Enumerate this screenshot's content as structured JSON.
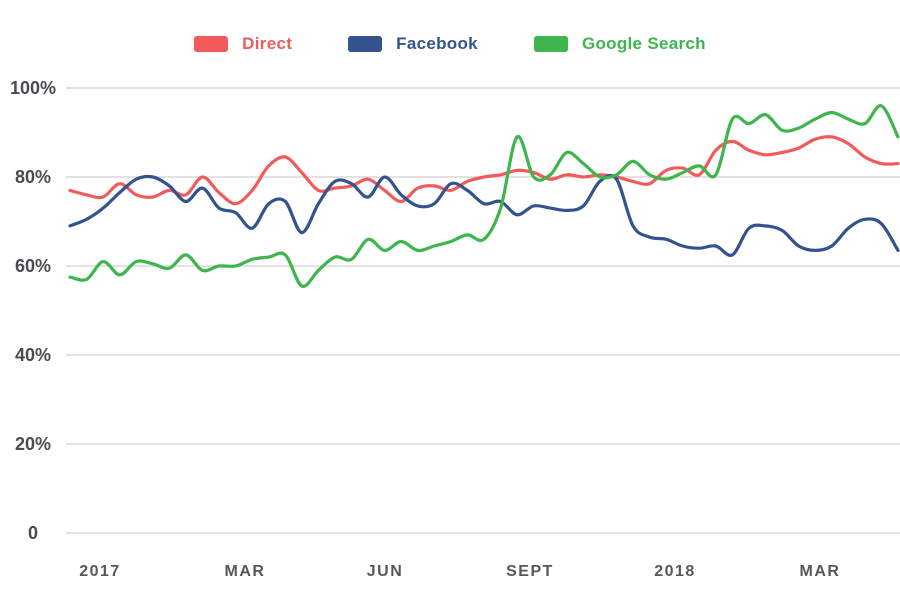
{
  "legend": {
    "position": "top"
  },
  "chart_data": {
    "type": "line",
    "title": "",
    "grid": "horizontal",
    "legend_position": "top",
    "x_axis": {
      "tick_labels": [
        "2017",
        "MAR",
        "JUN",
        "SEPT",
        "2018",
        "MAR"
      ]
    },
    "y_axis": {
      "tick_labels": [
        "100%",
        "80%",
        "60%",
        "40%",
        "20%",
        "0"
      ],
      "tick_values": [
        100,
        80,
        60,
        40,
        20,
        0
      ],
      "range": [
        0,
        100
      ],
      "unit": "%"
    },
    "colors": {
      "grid": "#d9d9d9",
      "axis_text": "#4a4b50"
    },
    "series": [
      {
        "name": "Direct",
        "color": "#f15b5b",
        "values": [
          77,
          76,
          75.5,
          78.5,
          76,
          75.5,
          77,
          76,
          80,
          76.5,
          74,
          77,
          82.5,
          84.5,
          81,
          77,
          77.5,
          78,
          79.5,
          77,
          74.5,
          77.5,
          78,
          77,
          79,
          80,
          80.5,
          81.5,
          81,
          79.5,
          80.5,
          80,
          80.5,
          80,
          79,
          78.5,
          81.5,
          82,
          80.5,
          86,
          88,
          86,
          85,
          85.5,
          86.5,
          88.5,
          89,
          87.5,
          84.5,
          83,
          83
        ]
      },
      {
        "name": "Facebook",
        "color": "#33538f",
        "values": [
          69,
          70.5,
          73,
          76.5,
          79.5,
          80,
          78,
          74.5,
          77.5,
          73,
          72,
          68.5,
          74,
          74.5,
          67.5,
          74,
          79,
          78.5,
          75.5,
          80,
          76,
          73.5,
          74,
          78.5,
          77,
          74,
          74.5,
          71.5,
          73.5,
          73,
          72.5,
          73.5,
          79,
          79.5,
          69,
          66.5,
          66,
          64.5,
          64,
          64.5,
          62.5,
          68.5,
          69,
          68,
          64.5,
          63.5,
          64.5,
          68.5,
          70.5,
          69.5,
          63.5
        ]
      },
      {
        "name": "Google Search",
        "color": "#3eb54d",
        "values": [
          57.5,
          57,
          61,
          58,
          61,
          60.5,
          59.5,
          62.5,
          59,
          60,
          60,
          61.5,
          62,
          62.5,
          55.5,
          59,
          62,
          61.5,
          66,
          63.5,
          65.5,
          63.5,
          64.5,
          65.5,
          67,
          66,
          73,
          89,
          80,
          80.5,
          85.5,
          83,
          80,
          80.5,
          83.5,
          80.5,
          79.5,
          81,
          82.5,
          80.5,
          93,
          92,
          94,
          90.5,
          91,
          93,
          94.5,
          93,
          92,
          96,
          89
        ]
      }
    ]
  }
}
